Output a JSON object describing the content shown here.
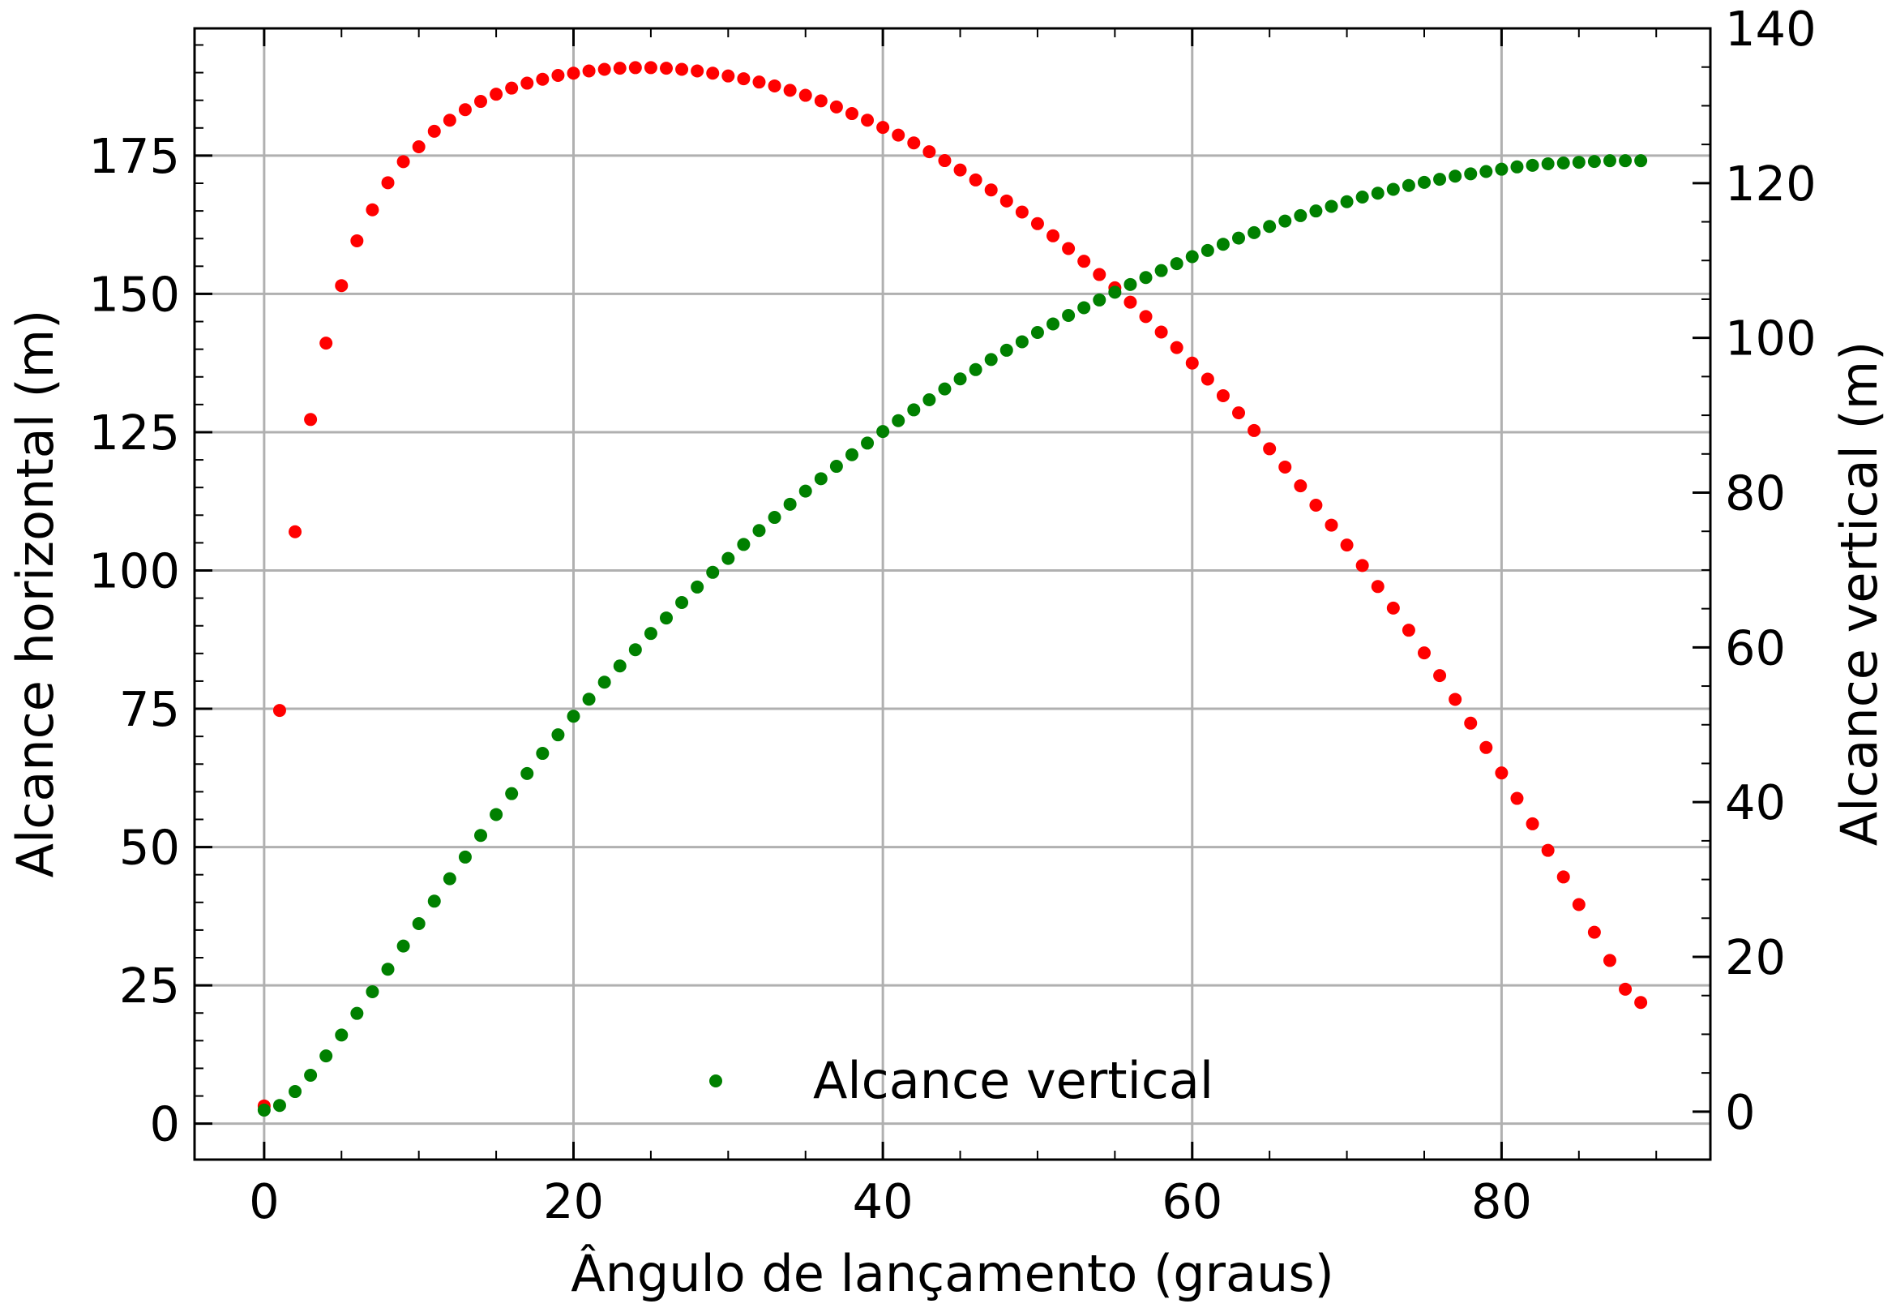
{
  "chart_data": {
    "type": "scatter",
    "title": "",
    "xlabel": "Ângulo de lançamento (graus)",
    "ylabel_left": "Alcance horizontal (m)",
    "ylabel_right": "Alcance vertical (m)",
    "xlim": [
      -4.5,
      93.5
    ],
    "ylim_left": [
      -6.5,
      198
    ],
    "ylim_right": [
      -6.2,
      140
    ],
    "x_ticks": [
      0,
      20,
      40,
      60,
      80
    ],
    "y_left_ticks": [
      0,
      25,
      50,
      75,
      100,
      125,
      150,
      175
    ],
    "y_right_ticks": [
      0,
      20,
      40,
      60,
      80,
      100,
      120,
      140
    ],
    "grid": true,
    "legend": {
      "position": "bottom-center",
      "entries": [
        "Alcance vertical"
      ]
    },
    "colors": {
      "horizontal": "#ff0000",
      "vertical": "#008000"
    },
    "series": [
      {
        "axis": "left",
        "color": "#ff0000",
        "x": [
          0,
          1,
          2,
          3,
          4,
          5,
          6,
          7,
          8,
          9,
          10,
          11,
          12,
          13,
          14,
          15,
          16,
          17,
          18,
          19,
          20,
          21,
          22,
          23,
          24,
          25,
          26,
          27,
          28,
          29,
          30,
          31,
          32,
          33,
          34,
          35,
          36,
          37,
          38,
          39,
          40,
          41,
          42,
          43,
          44,
          45,
          46,
          47,
          48,
          49,
          50,
          51,
          52,
          53,
          54,
          55,
          56,
          57,
          58,
          59,
          60,
          61,
          62,
          63,
          64,
          65,
          66,
          67,
          68,
          69,
          70,
          71,
          72,
          73,
          74,
          75,
          76,
          77,
          78,
          79,
          80,
          81,
          82,
          83,
          84,
          85,
          86,
          87,
          88,
          89
        ],
        "values": [
          3.2,
          74.7,
          107.0,
          127.3,
          141.1,
          151.5,
          159.6,
          165.2,
          170.1,
          173.9,
          176.6,
          179.4,
          181.4,
          183.3,
          184.8,
          186.1,
          187.2,
          188.1,
          188.8,
          189.5,
          189.9,
          190.3,
          190.6,
          190.8,
          190.9,
          190.9,
          190.8,
          190.6,
          190.3,
          189.9,
          189.4,
          188.9,
          188.3,
          187.6,
          186.8,
          185.9,
          184.9,
          183.8,
          182.6,
          181.4,
          180.1,
          178.7,
          177.3,
          175.7,
          174.1,
          172.4,
          170.6,
          168.8,
          166.8,
          164.8,
          162.7,
          160.5,
          158.2,
          155.9,
          153.5,
          151.1,
          148.5,
          145.9,
          143.1,
          140.3,
          137.5,
          134.6,
          131.6,
          128.5,
          125.3,
          122.0,
          118.7,
          115.3,
          111.8,
          108.2,
          104.6,
          100.9,
          97.1,
          93.2,
          89.2,
          85.1,
          81.0,
          76.7,
          72.4,
          68.0,
          63.4,
          58.8,
          54.2,
          49.4,
          44.6,
          39.6,
          34.6,
          29.5,
          24.3,
          21.9
        ]
      },
      {
        "axis": "right",
        "name": "Alcance vertical",
        "color": "#008000",
        "x": [
          0,
          1,
          2,
          3,
          4,
          5,
          6,
          7,
          8,
          9,
          10,
          11,
          12,
          13,
          14,
          15,
          16,
          17,
          18,
          19,
          20,
          21,
          22,
          23,
          24,
          25,
          26,
          27,
          28,
          29,
          30,
          31,
          32,
          33,
          34,
          35,
          36,
          37,
          38,
          39,
          40,
          41,
          42,
          43,
          44,
          45,
          46,
          47,
          48,
          49,
          50,
          51,
          52,
          53,
          54,
          55,
          56,
          57,
          58,
          59,
          60,
          61,
          62,
          63,
          64,
          65,
          66,
          67,
          68,
          69,
          70,
          71,
          72,
          73,
          74,
          75,
          76,
          77,
          78,
          79,
          80,
          81,
          82,
          83,
          84,
          85,
          86,
          87,
          88,
          89
        ],
        "values": [
          0.2,
          0.8,
          2.6,
          4.7,
          7.2,
          9.9,
          12.7,
          15.5,
          18.4,
          21.4,
          24.3,
          27.2,
          30.1,
          32.9,
          35.7,
          38.4,
          41.1,
          43.7,
          46.3,
          48.7,
          51.1,
          53.3,
          55.5,
          57.6,
          59.7,
          61.8,
          63.8,
          65.8,
          67.8,
          69.7,
          71.5,
          73.3,
          75.1,
          76.8,
          78.5,
          80.2,
          81.8,
          83.4,
          84.9,
          86.4,
          87.9,
          89.3,
          90.7,
          92.0,
          93.4,
          94.7,
          95.9,
          97.2,
          98.4,
          99.5,
          100.7,
          101.8,
          102.9,
          103.9,
          104.9,
          105.9,
          106.9,
          107.8,
          108.7,
          109.6,
          110.5,
          111.3,
          112.1,
          112.9,
          113.6,
          114.4,
          115.1,
          115.8,
          116.4,
          117.0,
          117.6,
          118.2,
          118.7,
          119.2,
          119.7,
          120.1,
          120.5,
          120.9,
          121.2,
          121.5,
          121.8,
          122.1,
          122.3,
          122.5,
          122.6,
          122.7,
          122.8,
          122.9,
          122.9,
          122.9
        ]
      }
    ]
  }
}
